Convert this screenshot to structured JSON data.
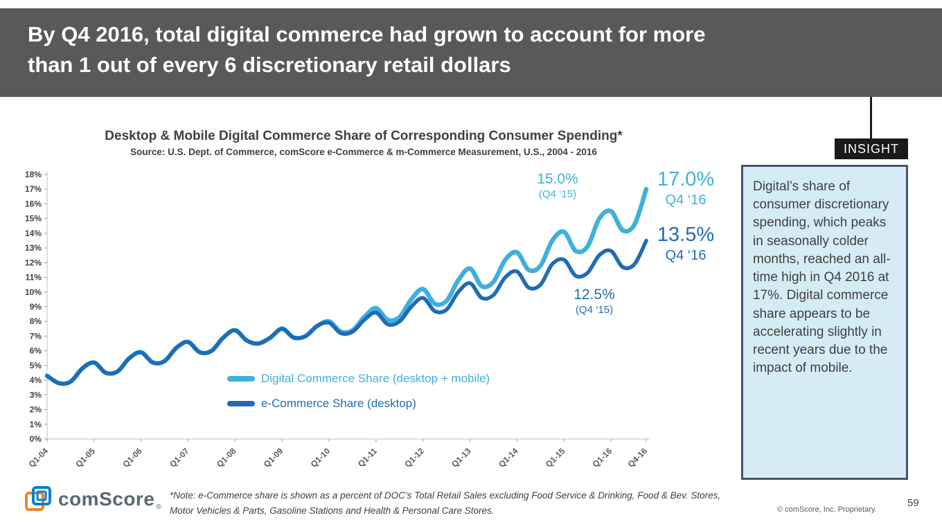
{
  "slide": {
    "title_line1": "By Q4 2016, total digital commerce had grown to account for more",
    "title_line2": "than 1 out of every 6 discretionary retail dollars",
    "page_number": "59",
    "copyright": "© comScore, Inc. Proprietary.",
    "footnote_line1": "*Note: e-Commerce share is shown as a percent of DOC’s Total Retail Sales excluding Food Service & Drinking, Food & Bev. Stores,",
    "footnote_line2": "Motor Vehicles & Parts, Gasoline Stations and Health & Personal Care Stores.",
    "logo_text": "comScore",
    "logo_reg": "®"
  },
  "insight": {
    "label": "INSIGHT",
    "text": "Digital’s share of consumer discretionary spending, which peaks in seasonally colder months, reached an all-time high in Q4 2016 at 17%. Digital commerce share appears to be accelerating slightly in recent years due to the impact of mobile."
  },
  "colors": {
    "header_bg": "#58595B",
    "light_blue": "#3FB0DC",
    "dark_blue": "#1F6CB4",
    "insight_bg": "#D6ECF5",
    "insight_border": "#44546A",
    "insight_label_bg": "#1A1A1A",
    "logo_orange": "#F58220",
    "logo_blue": "#0083CA"
  },
  "chart_data": {
    "type": "line",
    "title": "Desktop & Mobile Digital Commerce Share of Corresponding Consumer Spending*",
    "subtitle": "Source: U.S. Dept. of Commerce, comScore e-Commerce & m-Commerce Measurement, U.S., 2004 - 2016",
    "ylim": [
      0,
      18
    ],
    "y_tick_step": 1,
    "y_tick_suffix": "%",
    "grid": false,
    "legend_position": "inside-bottom-left",
    "x_tick_labels": [
      "Q1-04",
      "Q1-05",
      "Q1-06",
      "Q1-07",
      "Q1-08",
      "Q1-09",
      "Q1-10",
      "Q1-11",
      "Q1-12",
      "Q1-13",
      "Q1-14",
      "Q1-15",
      "Q1-16",
      "Q4-16"
    ],
    "x_tick_indices": [
      0,
      4,
      8,
      12,
      16,
      20,
      24,
      28,
      32,
      36,
      40,
      44,
      48,
      51
    ],
    "series": [
      {
        "name": "Digital Commerce Share (desktop + mobile)",
        "color": "#3FB0DC",
        "stroke_width": 6.5,
        "values": [
          4.3,
          3.8,
          3.9,
          4.8,
          5.2,
          4.5,
          4.6,
          5.5,
          5.9,
          5.2,
          5.3,
          6.2,
          6.6,
          5.9,
          6.0,
          6.9,
          7.4,
          6.7,
          6.5,
          6.9,
          7.5,
          6.9,
          7.0,
          7.7,
          8.0,
          7.3,
          7.4,
          8.3,
          8.9,
          8.1,
          8.3,
          9.5,
          10.2,
          9.2,
          9.4,
          10.8,
          11.6,
          10.4,
          10.7,
          12.2,
          12.7,
          11.5,
          11.8,
          13.5,
          14.1,
          12.8,
          13.1,
          15.0,
          15.5,
          14.2,
          14.6,
          17.0
        ]
      },
      {
        "name": "e-Commerce Share (desktop)",
        "color": "#1F6CB4",
        "stroke_width": 5.5,
        "values": [
          4.3,
          3.8,
          3.9,
          4.8,
          5.2,
          4.5,
          4.6,
          5.5,
          5.9,
          5.2,
          5.3,
          6.2,
          6.6,
          5.9,
          6.0,
          6.9,
          7.4,
          6.7,
          6.5,
          6.9,
          7.5,
          6.9,
          7.0,
          7.7,
          7.9,
          7.2,
          7.3,
          8.1,
          8.6,
          7.8,
          8.0,
          9.0,
          9.6,
          8.7,
          8.8,
          10.0,
          10.6,
          9.6,
          9.8,
          11.0,
          11.4,
          10.3,
          10.5,
          11.9,
          12.2,
          11.1,
          11.3,
          12.5,
          12.8,
          11.7,
          11.9,
          13.5
        ]
      }
    ],
    "annotations": [
      {
        "value": "15.0%",
        "label": "(Q4 ‘15)",
        "series": 0
      },
      {
        "value": "17.0%",
        "label": "Q4 ‘16",
        "series": 0
      },
      {
        "value": "13.5%",
        "label": "Q4 ‘16",
        "series": 1
      },
      {
        "value": "12.5%",
        "label": "(Q4 ‘15)",
        "series": 1
      }
    ]
  }
}
